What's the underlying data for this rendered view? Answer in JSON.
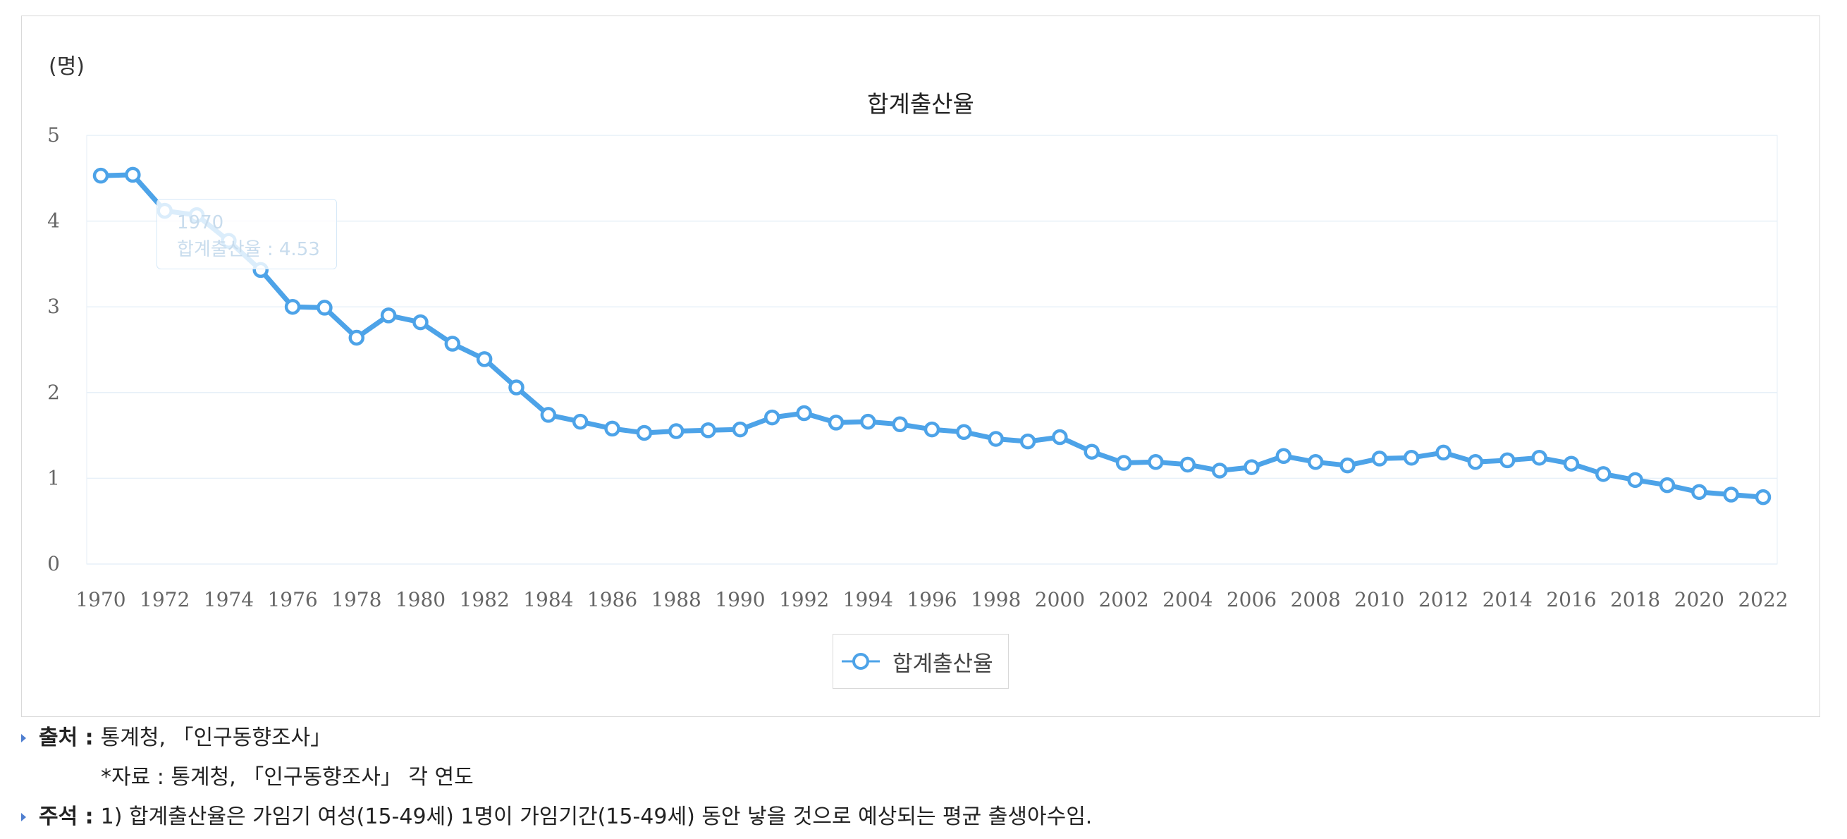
{
  "chart_data": {
    "type": "line",
    "title": "합계출산율",
    "unit_label": "(명)",
    "xlabel": "",
    "ylabel": "",
    "ylim": [
      0,
      5
    ],
    "yticks": [
      "0",
      "1",
      "2",
      "3",
      "4",
      "5"
    ],
    "xtick_labels": [
      "1970",
      "1972",
      "1974",
      "1976",
      "1978",
      "1980",
      "1982",
      "1984",
      "1986",
      "1988",
      "1990",
      "1992",
      "1994",
      "1996",
      "1998",
      "2000",
      "2002",
      "2004",
      "2006",
      "2008",
      "2010",
      "2012",
      "2014",
      "2016",
      "2018",
      "2020",
      "2022"
    ],
    "grid": true,
    "legend_position": "bottom-center",
    "series": [
      {
        "name": "합계출산율",
        "color": "#4da3e8",
        "x": [
          1970,
          1971,
          1972,
          1973,
          1974,
          1975,
          1976,
          1977,
          1978,
          1979,
          1980,
          1981,
          1982,
          1983,
          1984,
          1985,
          1986,
          1987,
          1988,
          1989,
          1990,
          1991,
          1992,
          1993,
          1994,
          1995,
          1996,
          1997,
          1998,
          1999,
          2000,
          2001,
          2002,
          2003,
          2004,
          2005,
          2006,
          2007,
          2008,
          2009,
          2010,
          2011,
          2012,
          2013,
          2014,
          2015,
          2016,
          2017,
          2018,
          2019,
          2020,
          2021,
          2022
        ],
        "values": [
          4.53,
          4.54,
          4.12,
          4.07,
          3.77,
          3.43,
          3.0,
          2.99,
          2.64,
          2.9,
          2.82,
          2.57,
          2.39,
          2.06,
          1.74,
          1.66,
          1.58,
          1.53,
          1.55,
          1.56,
          1.57,
          1.71,
          1.76,
          1.65,
          1.66,
          1.63,
          1.57,
          1.54,
          1.46,
          1.43,
          1.48,
          1.31,
          1.18,
          1.19,
          1.16,
          1.09,
          1.13,
          1.26,
          1.19,
          1.15,
          1.23,
          1.24,
          1.3,
          1.19,
          1.21,
          1.24,
          1.17,
          1.05,
          0.98,
          0.92,
          0.84,
          0.81,
          0.78
        ]
      }
    ],
    "tooltip": {
      "year": "1970",
      "text": "합계출산율 : 4.53"
    }
  },
  "notes": {
    "source_label": "출처 :",
    "source_text": "통계청, 「인구동향조사」",
    "data_text": "*자료 : 통계청, 「인구동향조사」 각 연도",
    "footnote_label": "주석 :",
    "footnote_text": "1) 합계출산율은 가임기 여성(15-49세) 1명이 가임기간(15-49세) 동안 낳을 것으로 예상되는 평균 출생아수임."
  }
}
